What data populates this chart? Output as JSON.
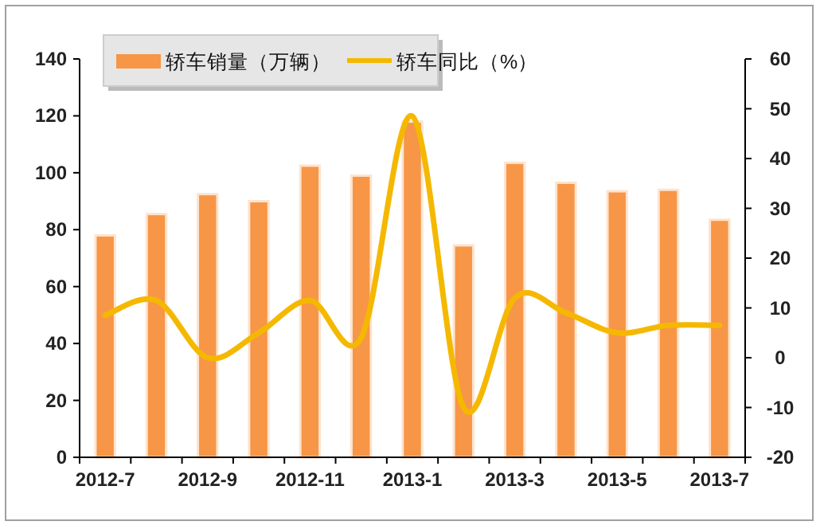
{
  "chart_data": {
    "type": "bar",
    "categories": [
      "2012-7",
      null,
      "2012-9",
      null,
      "2012-11",
      null,
      "2013-1",
      null,
      "2013-3",
      null,
      "2013-5",
      null,
      "2013-7"
    ],
    "series": [
      {
        "name": "轿车销量（万辆）",
        "color": "#f79646",
        "values": [
          78,
          85.5,
          92.5,
          90,
          102.5,
          99,
          118,
          74.5,
          103.5,
          96.5,
          93.5,
          94,
          83.5
        ]
      },
      {
        "name": "轿车同比（%）",
        "type": "line",
        "axis": "y2",
        "color": "#f5b800",
        "values": [
          8.5,
          11.5,
          0,
          5,
          11.5,
          4,
          48.5,
          -10,
          12,
          9,
          5,
          6.5,
          6.5
        ]
      }
    ],
    "ylim": [
      0,
      140
    ],
    "yticks": [
      0,
      20,
      40,
      60,
      80,
      100,
      120,
      140
    ],
    "y2lim": [
      -20,
      60
    ],
    "y2ticks": [
      -20,
      -10,
      0,
      10,
      20,
      30,
      40,
      50,
      60
    ],
    "legend": "top left",
    "grid": false
  }
}
